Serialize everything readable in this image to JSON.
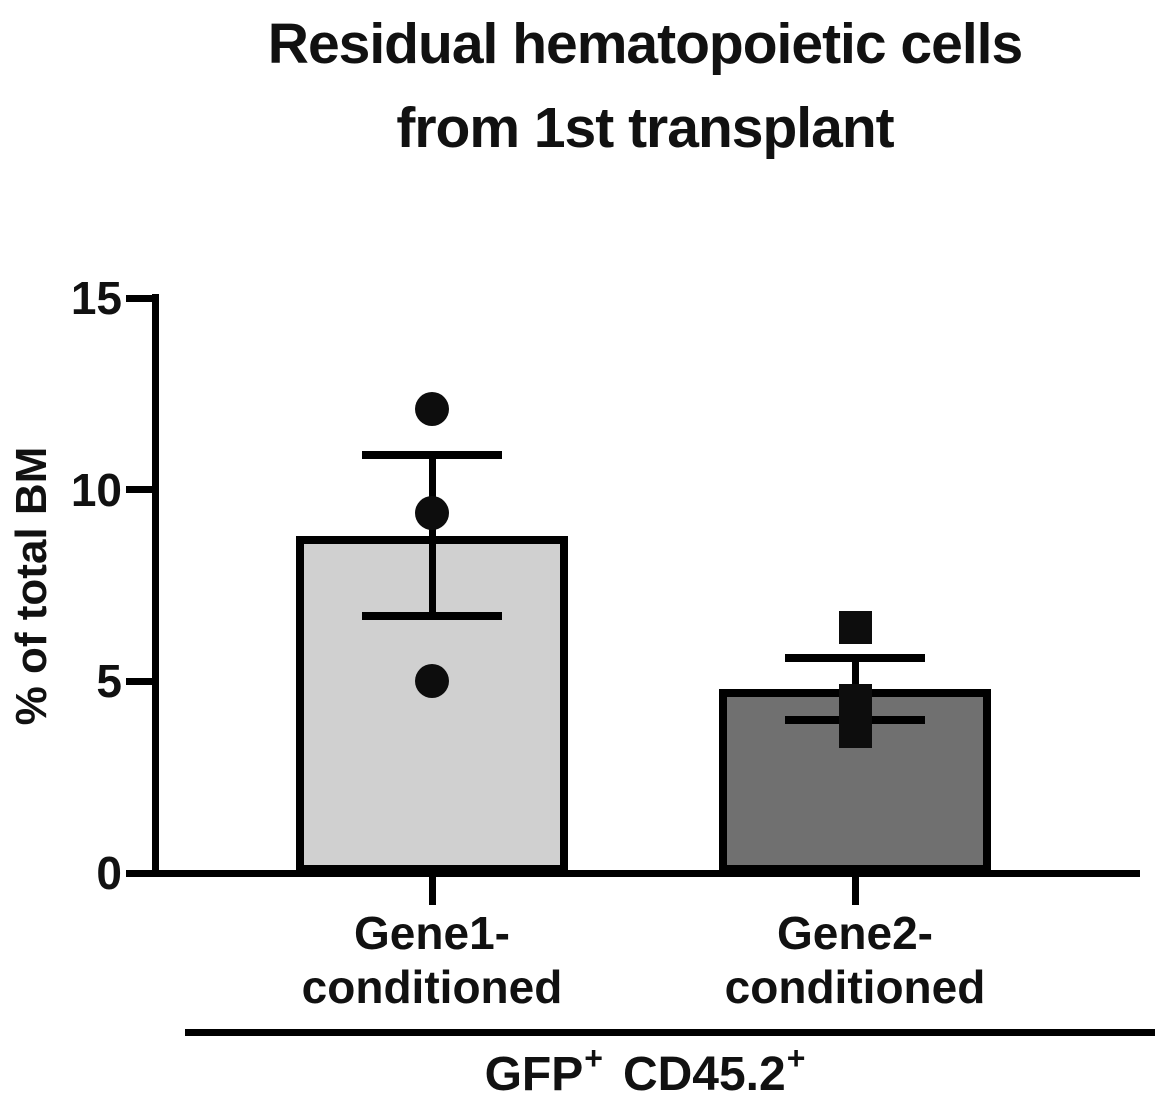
{
  "figure": {
    "background": "#ffffff"
  },
  "chart_data": {
    "type": "bar",
    "title": "Residual hematopoietic cells from 1st transplant",
    "title_lines": [
      "Residual hematopoietic cells",
      "from 1st transplant"
    ],
    "ylabel": "% of total BM",
    "xlabel": "GFP+ CD45.2+",
    "group_label_parts": [
      {
        "text": "GFP",
        "sup": "+"
      },
      {
        "text": "CD45.2",
        "sup": "+"
      }
    ],
    "ylim": [
      0,
      15
    ],
    "yticks": [
      0,
      5,
      10,
      15
    ],
    "grid": false,
    "legend": "none",
    "categories": [
      "Gene1-conditioned",
      "Gene2-conditioned"
    ],
    "categories_lines": [
      [
        "Gene1-",
        "conditioned"
      ],
      [
        "Gene2-",
        "conditioned"
      ]
    ],
    "series": [
      {
        "name": "Gene1-conditioned",
        "mean": 8.8,
        "sem": 2.1,
        "points": [
          12.1,
          9.4,
          5.0
        ],
        "marker": "circle",
        "fill": "#d0d0d0",
        "edge": "#000000"
      },
      {
        "name": "Gene2-conditioned",
        "mean": 4.8,
        "sem": 0.8,
        "points": [
          6.4,
          4.5,
          3.7
        ],
        "marker": "square",
        "fill": "#707070",
        "edge": "#000000"
      }
    ],
    "colors": {
      "axis": "#000000",
      "text": "#111111",
      "background": "#ffffff"
    }
  }
}
